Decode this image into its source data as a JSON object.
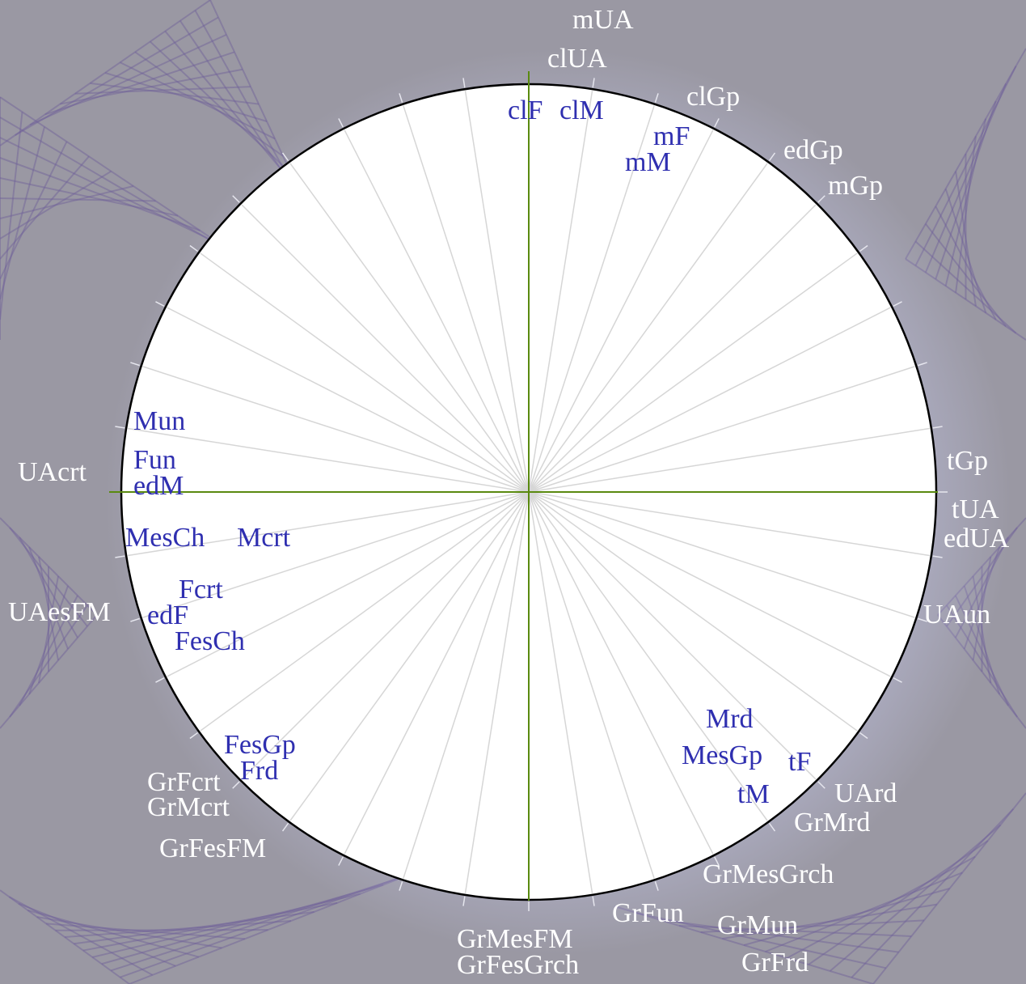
{
  "colors": {
    "background": "#9a98a3",
    "background_pattern": "#6f5f9a",
    "circle_fill": "#ffffff",
    "circle_stroke": "#000000",
    "axis": "#5a8a10",
    "spokes": "#d6d6d6",
    "outer_text": "#ffffff",
    "inner_text": "#2f2fb0",
    "glow": "#c9ccf0"
  },
  "spoke_count": 40,
  "outer_labels": [
    {
      "id": "mUA",
      "text": "mUA"
    },
    {
      "id": "clUA",
      "text": "clUA"
    },
    {
      "id": "clGp",
      "text": "clGp"
    },
    {
      "id": "edGp",
      "text": "edGp"
    },
    {
      "id": "mGp",
      "text": "mGp"
    },
    {
      "id": "tGp",
      "text": "tGp"
    },
    {
      "id": "tUA",
      "text": "tUA"
    },
    {
      "id": "edUA",
      "text": "edUA"
    },
    {
      "id": "UAun",
      "text": "UAun"
    },
    {
      "id": "UArd",
      "text": "UArd"
    },
    {
      "id": "GrMrd",
      "text": "GrMrd"
    },
    {
      "id": "GrMesGrch",
      "text": "GrMesGrch"
    },
    {
      "id": "GrFun",
      "text": "GrFun"
    },
    {
      "id": "GrMun",
      "text": "GrMun"
    },
    {
      "id": "GrFrd",
      "text": "GrFrd"
    },
    {
      "id": "GrMesFM",
      "text": "GrMesFM"
    },
    {
      "id": "GrFesGrch",
      "text": "GrFesGrch"
    },
    {
      "id": "GrFesFM",
      "text": "GrFesFM"
    },
    {
      "id": "GrMcrt",
      "text": "GrMcrt"
    },
    {
      "id": "GrFcrt",
      "text": "GrFcrt"
    },
    {
      "id": "UAesFM",
      "text": "UAesFM"
    },
    {
      "id": "UAcrt",
      "text": "UAcrt"
    }
  ],
  "inner_labels": [
    {
      "id": "clF",
      "text": "clF"
    },
    {
      "id": "clM",
      "text": "clM"
    },
    {
      "id": "mF",
      "text": "mF"
    },
    {
      "id": "mM",
      "text": "mM"
    },
    {
      "id": "Mun",
      "text": "Mun"
    },
    {
      "id": "Fun",
      "text": "Fun"
    },
    {
      "id": "edM",
      "text": "edM"
    },
    {
      "id": "MesCh",
      "text": "MesCh"
    },
    {
      "id": "Mcrt",
      "text": "Mcrt"
    },
    {
      "id": "Fcrt",
      "text": "Fcrt"
    },
    {
      "id": "edF",
      "text": "edF"
    },
    {
      "id": "FesCh",
      "text": "FesCh"
    },
    {
      "id": "FesGp",
      "text": "FesGp"
    },
    {
      "id": "Frd",
      "text": "Frd"
    },
    {
      "id": "Mrd",
      "text": "Mrd"
    },
    {
      "id": "MesGp",
      "text": "MesGp"
    },
    {
      "id": "tF",
      "text": "tF"
    },
    {
      "id": "tM",
      "text": "tM"
    }
  ]
}
